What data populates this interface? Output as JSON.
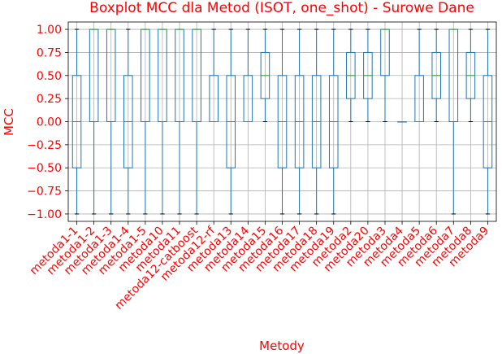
{
  "chart_data": {
    "type": "boxplot",
    "title": "Boxplot MCC dla Metod (ISOT, one_shot) - Surowe Dane",
    "xlabel": "Metody",
    "ylabel": "MCC",
    "ylim": [
      -1.08,
      1.08
    ],
    "yticks": [
      1.0,
      0.75,
      0.5,
      0.25,
      0.0,
      -0.25,
      -0.5,
      -0.75,
      -1.0
    ],
    "ytick_labels": [
      "1.00",
      "0.75",
      "0.50",
      "0.25",
      "0.00",
      "−0.25",
      "−0.50",
      "−0.75",
      "−1.00"
    ],
    "grid": true,
    "colors": {
      "text": "#ff0000",
      "box": "#1f77b4",
      "median": "#2ca02c",
      "caps": "#000000",
      "grid": "#b0b0b0"
    },
    "categories": [
      "metoda1-1",
      "metoda1-2",
      "metoda1-3",
      "metoda1-4",
      "metoda1-5",
      "metoda10",
      "metoda11",
      "metoda12-catboost",
      "metoda12-rf",
      "metoda13",
      "metoda14",
      "metoda15",
      "metoda16",
      "metoda17",
      "metoda18",
      "metoda19",
      "metoda2",
      "metoda20",
      "metoda3",
      "metoda4",
      "metoda5",
      "metoda6",
      "metoda7",
      "metoda8",
      "metoda9"
    ],
    "boxes": [
      {
        "whislo": -1,
        "q1": -0.5,
        "med": 0.0,
        "q3": 0.5,
        "whishi": 1
      },
      {
        "whislo": -1,
        "q1": 0.0,
        "med": 1.0,
        "q3": 1.0,
        "whishi": 1
      },
      {
        "whislo": -1,
        "q1": 0.0,
        "med": 1.0,
        "q3": 1.0,
        "whishi": 1
      },
      {
        "whislo": -1,
        "q1": -0.5,
        "med": 0.0,
        "q3": 0.5,
        "whishi": 1
      },
      {
        "whislo": -1,
        "q1": 0.0,
        "med": 1.0,
        "q3": 1.0,
        "whishi": 1
      },
      {
        "whislo": -1,
        "q1": 0.0,
        "med": 1.0,
        "q3": 1.0,
        "whishi": 1
      },
      {
        "whislo": -1,
        "q1": 0.0,
        "med": 1.0,
        "q3": 1.0,
        "whishi": 1
      },
      {
        "whislo": -1,
        "q1": 0.0,
        "med": 1.0,
        "q3": 1.0,
        "whishi": 1
      },
      {
        "whislo": 0,
        "q1": 0.0,
        "med": 0.0,
        "q3": 0.5,
        "whishi": 1
      },
      {
        "whislo": -1,
        "q1": -0.5,
        "med": 0.0,
        "q3": 0.5,
        "whishi": 1
      },
      {
        "whislo": 0,
        "q1": 0.0,
        "med": 0.0,
        "q3": 0.5,
        "whishi": 1
      },
      {
        "whislo": 0,
        "q1": 0.25,
        "med": 0.5,
        "q3": 0.75,
        "whishi": 1
      },
      {
        "whislo": -1,
        "q1": -0.5,
        "med": 0.0,
        "q3": 0.5,
        "whishi": 1
      },
      {
        "whislo": -1,
        "q1": -0.5,
        "med": 0.0,
        "q3": 0.5,
        "whishi": 1
      },
      {
        "whislo": -1,
        "q1": -0.5,
        "med": 0.0,
        "q3": 0.5,
        "whishi": 1
      },
      {
        "whislo": -1,
        "q1": -0.5,
        "med": 0.0,
        "q3": 0.5,
        "whishi": 1
      },
      {
        "whislo": 0,
        "q1": 0.25,
        "med": 0.5,
        "q3": 0.75,
        "whishi": 1
      },
      {
        "whislo": 0,
        "q1": 0.25,
        "med": 0.5,
        "q3": 0.75,
        "whishi": 1
      },
      {
        "whislo": 0,
        "q1": 0.5,
        "med": 1.0,
        "q3": 1.0,
        "whishi": 1
      },
      {
        "whislo": 0,
        "q1": 0.0,
        "med": 0.0,
        "q3": 0.0,
        "whishi": 0
      },
      {
        "whislo": 0,
        "q1": 0.0,
        "med": 0.0,
        "q3": 0.5,
        "whishi": 1
      },
      {
        "whislo": 0,
        "q1": 0.25,
        "med": 0.5,
        "q3": 0.75,
        "whishi": 1
      },
      {
        "whislo": -1,
        "q1": 0.0,
        "med": 1.0,
        "q3": 1.0,
        "whishi": 1
      },
      {
        "whislo": 0,
        "q1": 0.25,
        "med": 0.5,
        "q3": 0.75,
        "whishi": 1
      },
      {
        "whislo": -1,
        "q1": -0.5,
        "med": 0.0,
        "q3": 0.5,
        "whishi": 1
      }
    ]
  }
}
